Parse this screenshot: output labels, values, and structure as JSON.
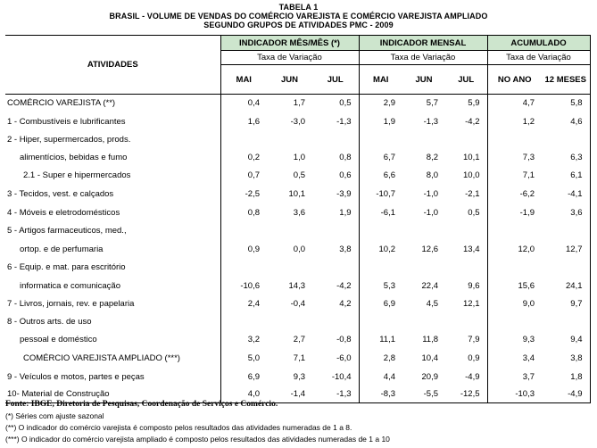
{
  "title": {
    "line1": "TABELA 1",
    "line2": "BRASIL - VOLUME DE VENDAS DO COMÉRCIO VAREJISTA E COMÉRCIO VAREJISTA AMPLIADO",
    "line3": "SEGUNDO GRUPOS DE ATIVIDADES PMC - 2009"
  },
  "header": {
    "atividades": "ATIVIDADES",
    "groups": [
      "INDICADOR MÊS/MÊS (*)",
      "INDICADOR MENSAL",
      "ACUMULADO"
    ],
    "taxa": "Taxa de Variação",
    "subcols": [
      "MAI",
      "JUN",
      "JUL",
      "MAI",
      "JUN",
      "JUL",
      "NO ANO",
      "12 MESES"
    ]
  },
  "rows": [
    {
      "label": "COMÉRCIO VAREJISTA (**)",
      "values": [
        "0,4",
        "1,7",
        "0,5",
        "2,9",
        "5,7",
        "5,9",
        "4,7",
        "5,8"
      ]
    },
    {
      "label": "1 - Combustíveis e lubrificantes",
      "values": [
        "1,6",
        "-3,0",
        "-1,3",
        "1,9",
        "-1,3",
        "-4,2",
        "1,2",
        "4,6"
      ]
    },
    {
      "label": "2 - Hiper, supermercados, prods.",
      "values": [
        "",
        "",
        "",
        "",
        "",
        "",
        "",
        ""
      ]
    },
    {
      "label": "alimentícios, bebidas e fumo",
      "values": [
        "0,2",
        "1,0",
        "0,8",
        "6,7",
        "8,2",
        "10,1",
        "7,3",
        "6,3"
      ]
    },
    {
      "label": "2.1 - Super e hipermercados",
      "values": [
        "0,7",
        "0,5",
        "0,6",
        "6,6",
        "8,0",
        "10,0",
        "7,1",
        "6,1"
      ]
    },
    {
      "label": "3 - Tecidos, vest. e calçados",
      "values": [
        "-2,5",
        "10,1",
        "-3,9",
        "-10,7",
        "-1,0",
        "-2,1",
        "-6,2",
        "-4,1"
      ]
    },
    {
      "label": "4 - Móveis e eletrodomésticos",
      "values": [
        "0,8",
        "3,6",
        "1,9",
        "-6,1",
        "-1,0",
        "0,5",
        "-1,9",
        "3,6"
      ]
    },
    {
      "label": "5 - Artigos farmaceuticos, med.,",
      "values": [
        "",
        "",
        "",
        "",
        "",
        "",
        "",
        ""
      ]
    },
    {
      "label": "ortop. e de perfumaria",
      "values": [
        "0,9",
        "0,0",
        "3,8",
        "10,2",
        "12,6",
        "13,4",
        "12,0",
        "12,7"
      ]
    },
    {
      "label": "6 - Equip. e mat. para escritório",
      "values": [
        "",
        "",
        "",
        "",
        "",
        "",
        "",
        ""
      ]
    },
    {
      "label": "informatica e comunicação",
      "values": [
        "-10,6",
        "14,3",
        "-4,2",
        "5,3",
        "22,4",
        "9,6",
        "15,6",
        "24,1"
      ]
    },
    {
      "label": "7 - Livros, jornais, rev. e papelaria",
      "values": [
        "2,4",
        "-0,4",
        "4,2",
        "6,9",
        "4,5",
        "12,1",
        "9,0",
        "9,7"
      ]
    },
    {
      "label": "8 - Outros arts. de uso",
      "values": [
        "",
        "",
        "",
        "",
        "",
        "",
        "",
        ""
      ]
    },
    {
      "label": "pessoal e doméstico",
      "values": [
        "3,2",
        "2,7",
        "-0,8",
        "11,1",
        "11,8",
        "7,9",
        "9,3",
        "9,4"
      ]
    },
    {
      "label": "COMÉRCIO VAREJISTA AMPLIADO (***)",
      "values": [
        "5,0",
        "7,1",
        "-6,0",
        "2,8",
        "10,4",
        "0,9",
        "3,4",
        "3,8"
      ]
    },
    {
      "label": "9 - Veículos e motos, partes e peças",
      "values": [
        "6,9",
        "9,3",
        "-10,4",
        "4,4",
        "20,9",
        "-4,9",
        "3,7",
        "1,8"
      ]
    },
    {
      "label": "10- Material de Construção",
      "values": [
        "4,0",
        "-1,4",
        "-1,3",
        "-8,3",
        "-5,5",
        "-12,5",
        "-10,3",
        "-4,9"
      ]
    }
  ],
  "footer": {
    "source": "Fonte: IBGE, Diretoria de Pesquisas, Coordenação de Serviços e Comércio.",
    "note1": "(*) Séries com ajuste sazonal",
    "note2": "(**) O indicador do comércio varejista é composto pelos resultados das atividades numeradas de 1 a 8.",
    "note3": "(***) O indicador do comércio varejista ampliado é composto pelos resultados das atividades numeradas de 1 a 10"
  }
}
